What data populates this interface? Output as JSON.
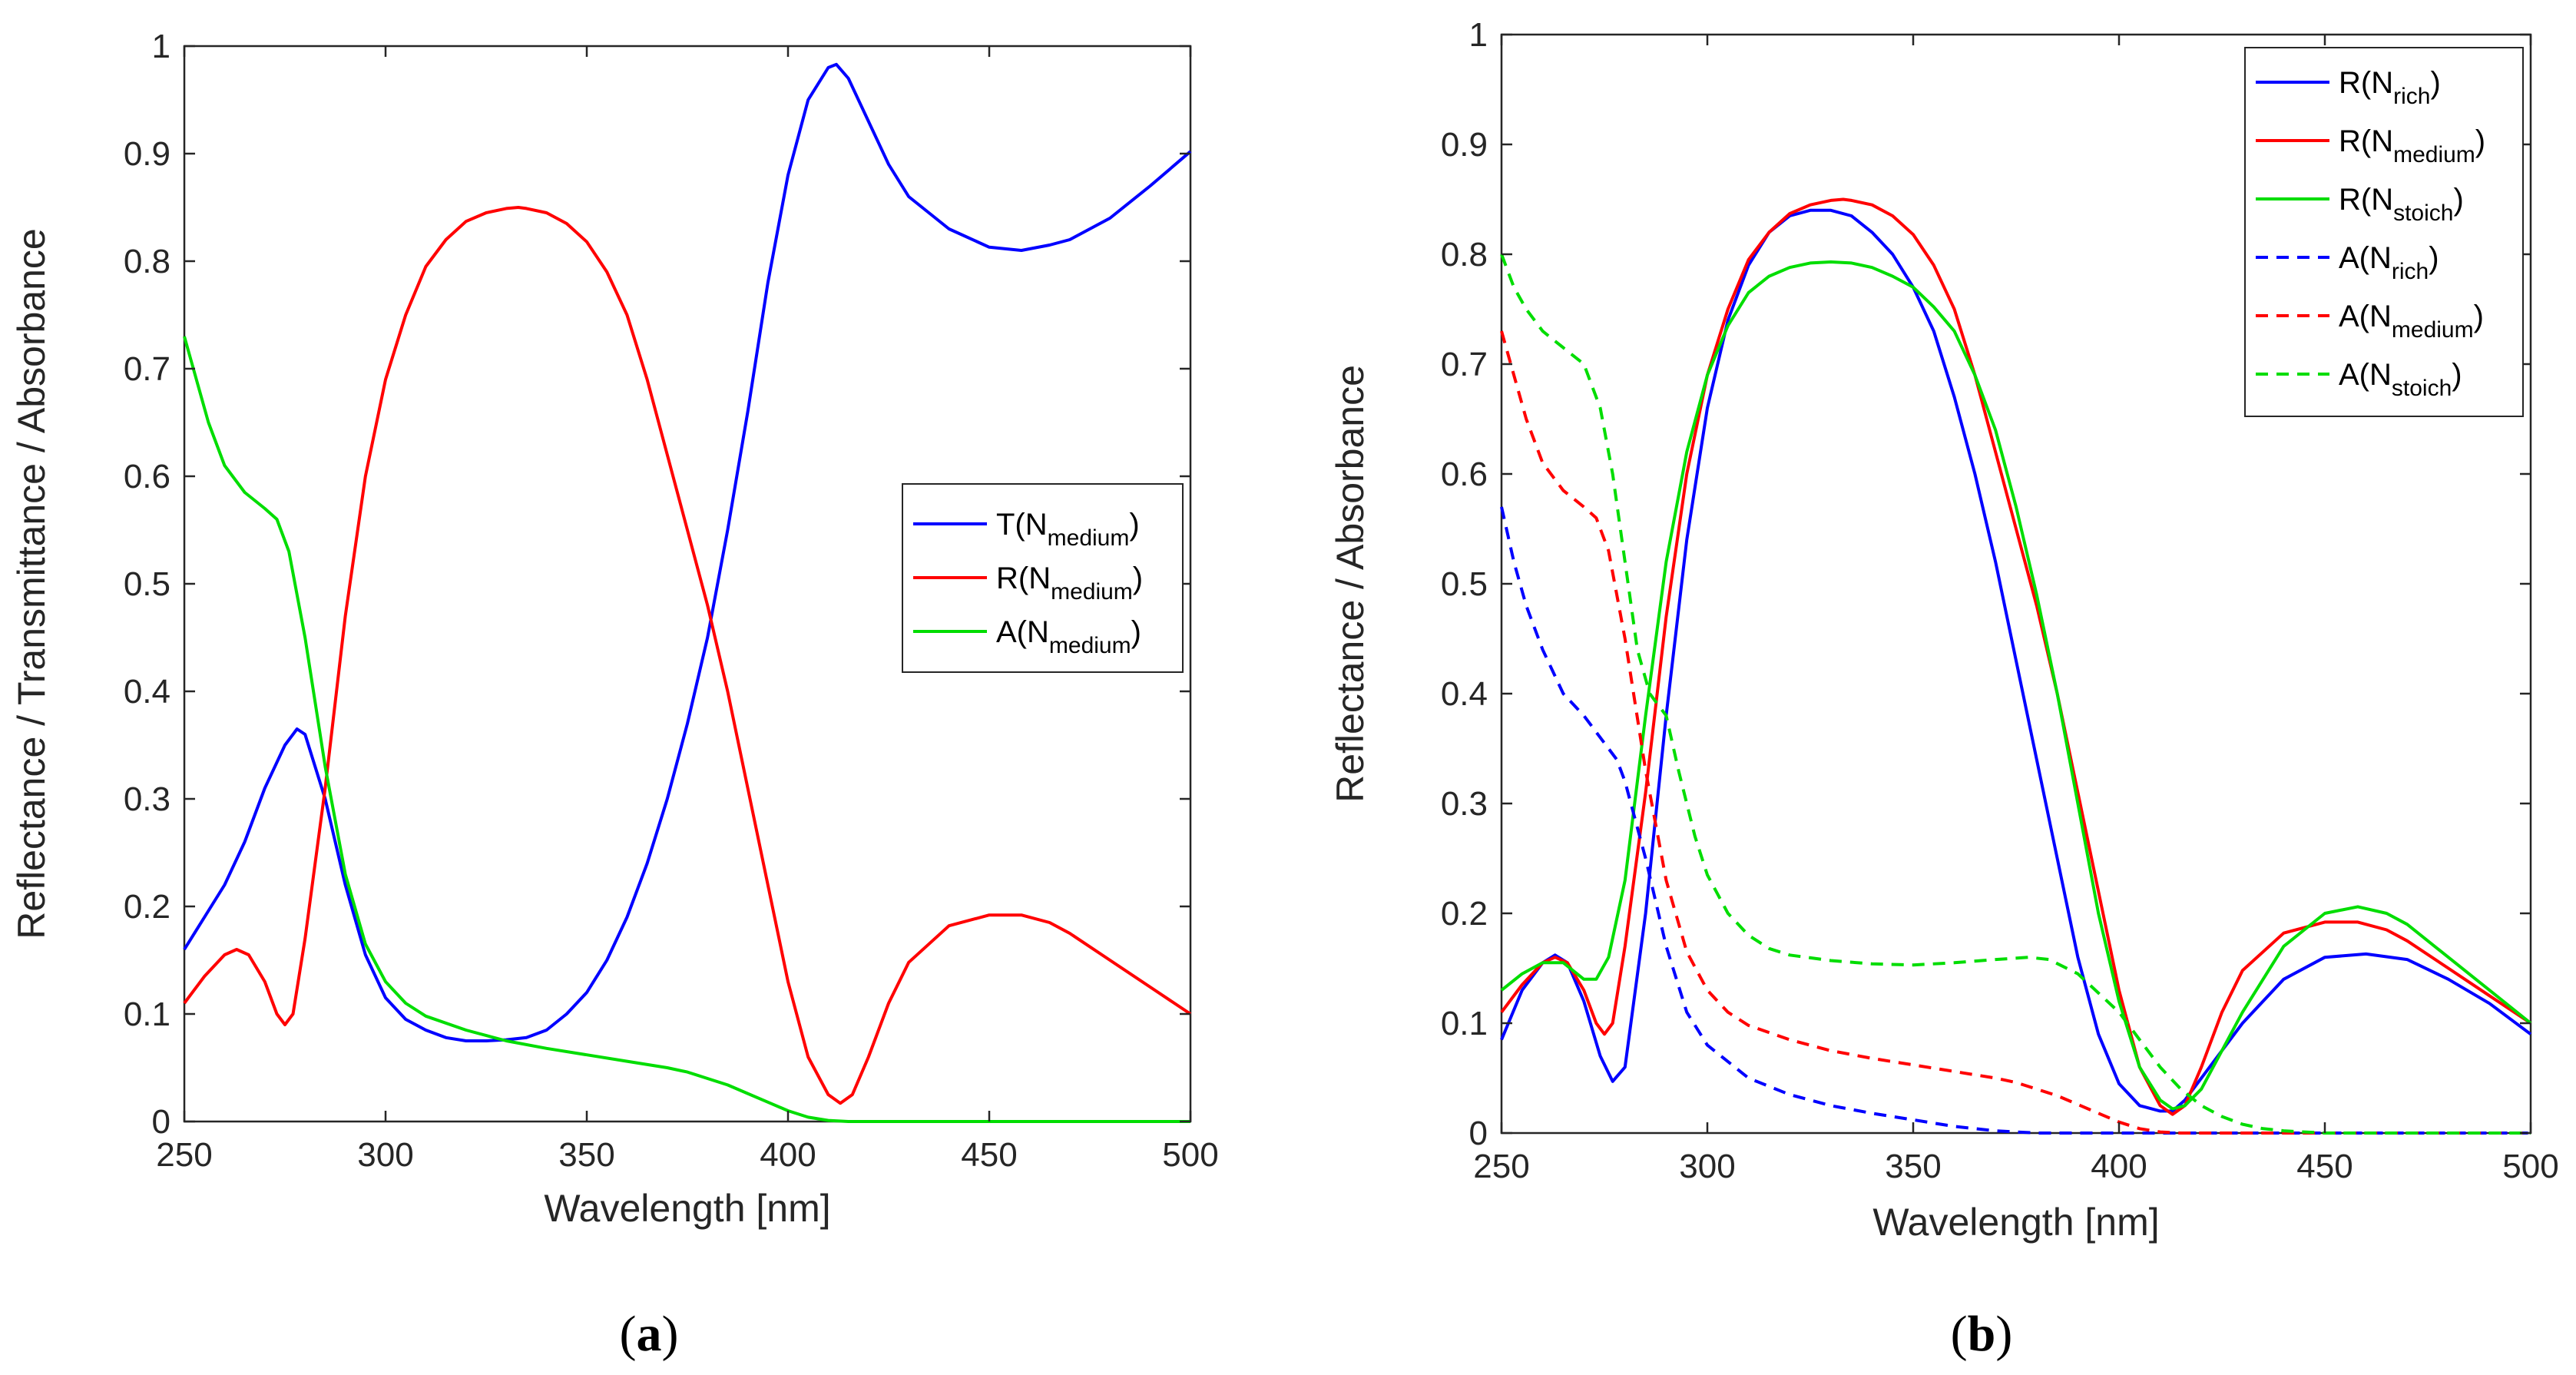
{
  "chart_data": [
    {
      "type": "line",
      "panel": "a",
      "caption": {
        "open": "(",
        "letter": "a",
        "close": ")"
      },
      "xlabel": "Wavelength [nm]",
      "ylabel": "Reflectance / Transmittance / Absorbance",
      "xlim": [
        250,
        500
      ],
      "ylim": [
        0,
        1
      ],
      "xticks": [
        "250",
        "300",
        "350",
        "400",
        "450",
        "500"
      ],
      "yticks": [
        "0",
        "0.1",
        "0.2",
        "0.3",
        "0.4",
        "0.5",
        "0.6",
        "0.7",
        "0.8",
        "0.9",
        "1"
      ],
      "legend_position": "right",
      "series": [
        {
          "name": "T(N_medium)",
          "label_main": "T(N",
          "label_sub": "medium",
          "label_close": ")",
          "color": "#0000ff",
          "dash": "solid",
          "x": [
            250,
            255,
            260,
            265,
            270,
            275,
            278,
            280,
            285,
            290,
            295,
            300,
            305,
            310,
            315,
            320,
            325,
            330,
            335,
            340,
            345,
            350,
            355,
            360,
            365,
            370,
            375,
            380,
            385,
            390,
            395,
            400,
            405,
            410,
            412,
            415,
            420,
            425,
            430,
            440,
            450,
            458,
            465,
            470,
            480,
            490,
            500
          ],
          "y": [
            0.16,
            0.19,
            0.22,
            0.26,
            0.31,
            0.35,
            0.365,
            0.36,
            0.3,
            0.22,
            0.155,
            0.115,
            0.095,
            0.085,
            0.078,
            0.075,
            0.075,
            0.076,
            0.078,
            0.085,
            0.1,
            0.12,
            0.15,
            0.19,
            0.24,
            0.3,
            0.37,
            0.45,
            0.55,
            0.66,
            0.78,
            0.88,
            0.95,
            0.98,
            0.983,
            0.97,
            0.93,
            0.89,
            0.86,
            0.83,
            0.813,
            0.81,
            0.815,
            0.82,
            0.84,
            0.87,
            0.902
          ]
        },
        {
          "name": "R(N_medium)",
          "label_main": "R(N",
          "label_sub": "medium",
          "label_close": ")",
          "color": "#ff0000",
          "dash": "solid",
          "x": [
            250,
            255,
            260,
            263,
            266,
            270,
            273,
            275,
            277,
            280,
            285,
            290,
            295,
            300,
            305,
            310,
            315,
            320,
            325,
            330,
            333,
            335,
            340,
            345,
            350,
            355,
            360,
            365,
            370,
            375,
            380,
            385,
            390,
            395,
            400,
            405,
            410,
            413,
            416,
            420,
            425,
            430,
            440,
            450,
            458,
            465,
            470,
            480,
            490,
            500
          ],
          "y": [
            0.11,
            0.135,
            0.155,
            0.16,
            0.155,
            0.13,
            0.1,
            0.09,
            0.1,
            0.17,
            0.31,
            0.47,
            0.6,
            0.69,
            0.75,
            0.795,
            0.82,
            0.837,
            0.845,
            0.849,
            0.85,
            0.849,
            0.845,
            0.835,
            0.818,
            0.79,
            0.75,
            0.69,
            0.62,
            0.55,
            0.48,
            0.4,
            0.31,
            0.22,
            0.13,
            0.06,
            0.025,
            0.017,
            0.025,
            0.06,
            0.11,
            0.148,
            0.182,
            0.192,
            0.192,
            0.185,
            0.175,
            0.15,
            0.125,
            0.1
          ]
        },
        {
          "name": "A(N_medium)",
          "label_main": "A(N",
          "label_sub": "medium",
          "label_close": ")",
          "color": "#00dd00",
          "dash": "solid",
          "x": [
            250,
            253,
            256,
            260,
            265,
            270,
            273,
            276,
            280,
            285,
            290,
            295,
            300,
            305,
            310,
            320,
            330,
            340,
            350,
            360,
            370,
            375,
            380,
            385,
            390,
            395,
            400,
            405,
            410,
            415,
            420,
            450,
            500
          ],
          "y": [
            0.73,
            0.69,
            0.65,
            0.61,
            0.585,
            0.57,
            0.56,
            0.53,
            0.45,
            0.33,
            0.23,
            0.165,
            0.13,
            0.11,
            0.098,
            0.085,
            0.075,
            0.068,
            0.062,
            0.056,
            0.05,
            0.046,
            0.04,
            0.034,
            0.026,
            0.018,
            0.01,
            0.004,
            0.001,
            0,
            0,
            0,
            0
          ]
        }
      ]
    },
    {
      "type": "line",
      "panel": "b",
      "caption": {
        "open": "(",
        "letter": "b",
        "close": ")"
      },
      "xlabel": "Wavelength [nm]",
      "ylabel": "Reflectance / Absorbance",
      "xlim": [
        250,
        500
      ],
      "ylim": [
        0,
        1
      ],
      "xticks": [
        "250",
        "300",
        "350",
        "400",
        "450",
        "500"
      ],
      "yticks": [
        "0",
        "0.1",
        "0.2",
        "0.3",
        "0.4",
        "0.5",
        "0.6",
        "0.7",
        "0.8",
        "0.9",
        "1"
      ],
      "legend_position": "top-right",
      "series": [
        {
          "name": "R(N_rich)",
          "label_main": "R(N",
          "label_sub": "rich",
          "label_close": ")",
          "color": "#0000ff",
          "dash": "solid",
          "x": [
            250,
            255,
            260,
            263,
            266,
            270,
            274,
            277,
            280,
            285,
            290,
            295,
            300,
            305,
            310,
            315,
            320,
            325,
            330,
            335,
            340,
            345,
            350,
            355,
            360,
            365,
            370,
            375,
            380,
            385,
            390,
            395,
            400,
            405,
            410,
            413,
            416,
            420,
            430,
            440,
            450,
            460,
            470,
            480,
            490,
            500
          ],
          "y": [
            0.085,
            0.13,
            0.155,
            0.162,
            0.155,
            0.12,
            0.07,
            0.047,
            0.06,
            0.2,
            0.38,
            0.54,
            0.66,
            0.74,
            0.79,
            0.82,
            0.835,
            0.84,
            0.84,
            0.835,
            0.82,
            0.8,
            0.77,
            0.73,
            0.67,
            0.6,
            0.52,
            0.43,
            0.34,
            0.25,
            0.16,
            0.09,
            0.045,
            0.025,
            0.02,
            0.02,
            0.03,
            0.05,
            0.1,
            0.14,
            0.16,
            0.163,
            0.158,
            0.14,
            0.118,
            0.09
          ]
        },
        {
          "name": "R(N_medium)",
          "label_main": "R(N",
          "label_sub": "medium",
          "label_close": ")",
          "color": "#ff0000",
          "dash": "solid",
          "x": [
            250,
            255,
            260,
            263,
            266,
            270,
            273,
            275,
            277,
            280,
            285,
            290,
            295,
            300,
            305,
            310,
            315,
            320,
            325,
            330,
            333,
            335,
            340,
            345,
            350,
            355,
            360,
            365,
            370,
            375,
            380,
            385,
            390,
            395,
            400,
            405,
            410,
            413,
            416,
            420,
            425,
            430,
            440,
            450,
            458,
            465,
            470,
            480,
            490,
            500
          ],
          "y": [
            0.11,
            0.135,
            0.155,
            0.16,
            0.155,
            0.13,
            0.1,
            0.09,
            0.1,
            0.17,
            0.31,
            0.47,
            0.6,
            0.69,
            0.75,
            0.795,
            0.82,
            0.837,
            0.845,
            0.849,
            0.85,
            0.849,
            0.845,
            0.835,
            0.818,
            0.79,
            0.75,
            0.69,
            0.62,
            0.55,
            0.48,
            0.4,
            0.31,
            0.22,
            0.13,
            0.06,
            0.025,
            0.017,
            0.025,
            0.06,
            0.11,
            0.148,
            0.182,
            0.192,
            0.192,
            0.185,
            0.175,
            0.15,
            0.125,
            0.1
          ]
        },
        {
          "name": "R(N_stoich)",
          "label_main": "R(N",
          "label_sub": "stoich",
          "label_close": ")",
          "color": "#00dd00",
          "dash": "solid",
          "x": [
            250,
            255,
            260,
            265,
            270,
            273,
            276,
            280,
            285,
            290,
            295,
            300,
            305,
            310,
            315,
            320,
            325,
            330,
            335,
            340,
            345,
            350,
            355,
            360,
            365,
            370,
            375,
            380,
            385,
            390,
            395,
            400,
            405,
            410,
            413,
            416,
            420,
            430,
            440,
            450,
            458,
            465,
            470,
            480,
            490,
            500
          ],
          "y": [
            0.13,
            0.145,
            0.155,
            0.155,
            0.14,
            0.14,
            0.16,
            0.23,
            0.38,
            0.52,
            0.62,
            0.69,
            0.735,
            0.765,
            0.78,
            0.788,
            0.792,
            0.793,
            0.792,
            0.788,
            0.78,
            0.77,
            0.752,
            0.73,
            0.69,
            0.64,
            0.57,
            0.49,
            0.4,
            0.3,
            0.2,
            0.12,
            0.06,
            0.03,
            0.022,
            0.025,
            0.04,
            0.11,
            0.17,
            0.2,
            0.206,
            0.2,
            0.19,
            0.16,
            0.13,
            0.1
          ]
        },
        {
          "name": "A(N_rich)",
          "label_main": "A(N",
          "label_sub": "rich",
          "label_close": ")",
          "color": "#0000ff",
          "dash": "dashed",
          "x": [
            250,
            253,
            256,
            260,
            265,
            270,
            274,
            278,
            280,
            285,
            290,
            295,
            300,
            310,
            320,
            330,
            340,
            350,
            360,
            370,
            380,
            400,
            500
          ],
          "y": [
            0.57,
            0.52,
            0.48,
            0.44,
            0.4,
            0.38,
            0.36,
            0.34,
            0.32,
            0.25,
            0.17,
            0.11,
            0.08,
            0.05,
            0.035,
            0.025,
            0.018,
            0.012,
            0.006,
            0.002,
            0,
            0,
            0
          ]
        },
        {
          "name": "A(N_medium)",
          "label_main": "A(N",
          "label_sub": "medium",
          "label_close": ")",
          "color": "#ff0000",
          "dash": "dashed",
          "x": [
            250,
            253,
            256,
            260,
            265,
            270,
            273,
            276,
            280,
            285,
            290,
            295,
            300,
            305,
            310,
            320,
            330,
            340,
            350,
            360,
            370,
            375,
            380,
            385,
            390,
            395,
            400,
            405,
            410,
            415,
            420,
            450,
            500
          ],
          "y": [
            0.73,
            0.69,
            0.65,
            0.61,
            0.585,
            0.57,
            0.56,
            0.53,
            0.45,
            0.33,
            0.23,
            0.165,
            0.13,
            0.11,
            0.098,
            0.085,
            0.075,
            0.068,
            0.062,
            0.056,
            0.05,
            0.046,
            0.04,
            0.034,
            0.026,
            0.018,
            0.01,
            0.004,
            0.001,
            0,
            0,
            0,
            0
          ]
        },
        {
          "name": "A(N_stoich)",
          "label_main": "A(N",
          "label_sub": "stoich",
          "label_close": ")",
          "color": "#00dd00",
          "dash": "dashed",
          "x": [
            250,
            253,
            256,
            260,
            265,
            270,
            274,
            277,
            280,
            283,
            286,
            290,
            293,
            297,
            300,
            305,
            310,
            315,
            320,
            330,
            340,
            350,
            360,
            370,
            378,
            383,
            390,
            400,
            405,
            410,
            415,
            420,
            425,
            430,
            435,
            440,
            445,
            450,
            455,
            460,
            500
          ],
          "y": [
            0.8,
            0.77,
            0.75,
            0.73,
            0.715,
            0.7,
            0.66,
            0.6,
            0.52,
            0.44,
            0.4,
            0.38,
            0.33,
            0.27,
            0.235,
            0.2,
            0.18,
            0.168,
            0.162,
            0.157,
            0.154,
            0.153,
            0.155,
            0.158,
            0.16,
            0.158,
            0.145,
            0.11,
            0.085,
            0.06,
            0.04,
            0.025,
            0.015,
            0.008,
            0.004,
            0.002,
            0.001,
            0,
            0,
            0,
            0
          ]
        }
      ]
    }
  ]
}
